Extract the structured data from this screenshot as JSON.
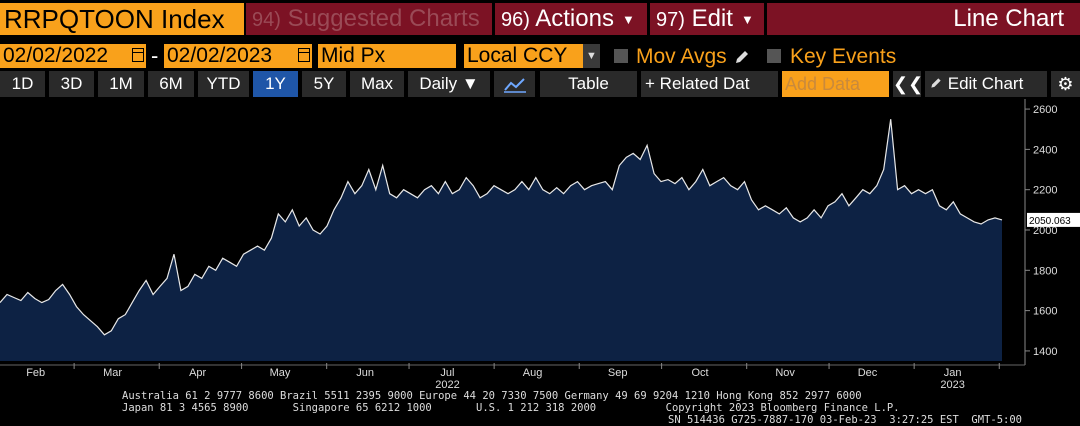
{
  "header": {
    "ticker": "RRPQTOON Index",
    "suggested_num": "94)",
    "suggested_label": "Suggested Charts",
    "actions_num": "96)",
    "actions_label": "Actions",
    "edit_num": "97)",
    "edit_label": "Edit",
    "chart_title": "Line Chart"
  },
  "controls": {
    "start_date": "02/02/2022",
    "end_date": "02/02/2023",
    "date_separator": "-",
    "price_field": "Mid Px",
    "currency": "Local CCY",
    "mov_avgs": "Mov Avgs",
    "key_events": "Key Events"
  },
  "toolbar": {
    "ranges": [
      "1D",
      "3D",
      "1M",
      "6M",
      "YTD",
      "1Y",
      "5Y",
      "Max"
    ],
    "active_range": "1Y",
    "frequency": "Daily",
    "table_label": "Table",
    "related_label": "Related Dat",
    "add_data_placeholder": "Add Data",
    "edit_chart_label": "Edit Chart"
  },
  "icons": {
    "calendar": "calendar-icon",
    "pencil": "pencil-icon",
    "line-chart": "line-chart-icon",
    "plus": "plus-icon",
    "double-chevron": "double-chevron-left-icon",
    "gear": "gear-icon"
  },
  "colors": {
    "accent_orange": "#f9a11b",
    "tab_maroon": "#7c1224",
    "active_blue": "#1f56a8",
    "area_fill": "#0d2244"
  },
  "chart_data": {
    "type": "area",
    "series": [
      {
        "values": [
          1640,
          1680,
          1665,
          1650,
          1690,
          1660,
          1640,
          1655,
          1700,
          1730,
          1680,
          1620,
          1580,
          1550,
          1520,
          1480,
          1500,
          1560,
          1580,
          1640,
          1700,
          1750,
          1680,
          1720,
          1760,
          1880,
          1700,
          1720,
          1780,
          1760,
          1820,
          1800,
          1860,
          1840,
          1820,
          1880,
          1900,
          1920,
          1900,
          1960,
          2080,
          2040,
          2100,
          2020,
          2060,
          2000,
          1980,
          2020,
          2100,
          2160,
          2240,
          2180,
          2220,
          2300,
          2200,
          2320,
          2180,
          2160,
          2200,
          2180,
          2160,
          2200,
          2220,
          2180,
          2240,
          2180,
          2200,
          2260,
          2220,
          2160,
          2180,
          2220,
          2200,
          2180,
          2200,
          2240,
          2200,
          2260,
          2200,
          2180,
          2210,
          2180,
          2220,
          2240,
          2200,
          2220,
          2230,
          2240,
          2200,
          2320,
          2360,
          2380,
          2350,
          2420,
          2280,
          2240,
          2250,
          2230,
          2260,
          2200,
          2240,
          2300,
          2220,
          2240,
          2260,
          2220,
          2200,
          2240,
          2150,
          2100,
          2120,
          2100,
          2080,
          2110,
          2060,
          2040,
          2060,
          2100,
          2060,
          2120,
          2140,
          2180,
          2120,
          2160,
          2200,
          2180,
          2220,
          2300,
          2550,
          2200,
          2220,
          2180,
          2200,
          2180,
          2200,
          2120,
          2100,
          2140,
          2080,
          2060,
          2040,
          2030,
          2050,
          2060,
          2050.063
        ]
      }
    ],
    "x_start": "2022-02-02",
    "x_end": "2023-02-02",
    "last_value_label": "2050.063",
    "y_ticks": [
      "2600",
      "2400",
      "2200",
      "2000",
      "1800",
      "1600",
      "1400"
    ],
    "ylim": [
      1350,
      2650
    ],
    "month_labels": [
      "Feb",
      "Mar",
      "Apr",
      "May",
      "Jun",
      "Jul",
      "Aug",
      "Sep",
      "Oct",
      "Nov",
      "Dec",
      "Jan"
    ],
    "year_labels": [
      "2022",
      "2023"
    ],
    "grid": false,
    "legend": "none"
  },
  "footer": {
    "line1": "Australia 61 2 9777 8600 Brazil 5511 2395 9000 Europe 44 20 7330 7500 Germany 49 69 9204 1210 Hong Kong 852 2977 6000",
    "line2": "Japan 81 3 4565 8900       Singapore 65 6212 1000       U.S. 1 212 318 2000           Copyright 2023 Bloomberg Finance L.P.",
    "line3": "SN 514436 G725-7887-170 03-Feb-23  3:27:25 EST  GMT-5:00"
  }
}
